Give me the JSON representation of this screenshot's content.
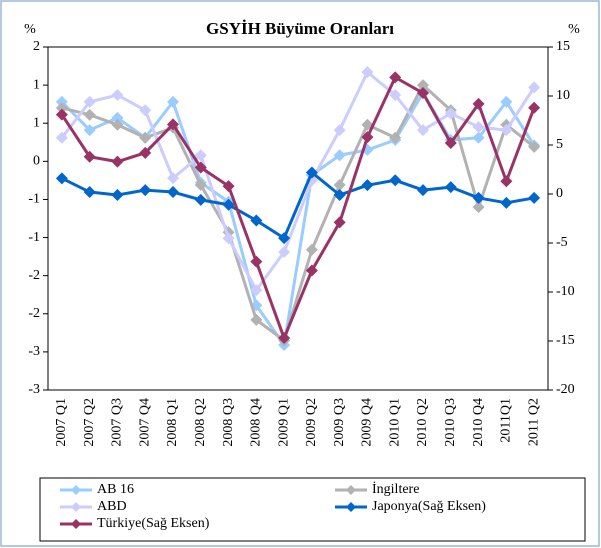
{
  "chart_data": {
    "type": "line",
    "title": "GSYİH Büyüme Oranları",
    "y_label": "%",
    "y2_label": "%",
    "categories": [
      "2007 Q1",
      "2007 Q2",
      "2007 Q3",
      "2007 Q4",
      "2008 Q1",
      "2008 Q2",
      "2008 Q3",
      "2008 Q4",
      "2009 Q1",
      "2009 Q2",
      "2009 Q3",
      "2009 Q4",
      "2010 Q1",
      "2010 Q2",
      "2010 Q3",
      "2010 Q4",
      "2011Q1",
      "2011 Q2"
    ],
    "ylim": [
      -3,
      1.5
    ],
    "yticks": [
      {
        "value": 1.5,
        "label": "2"
      },
      {
        "value": 1,
        "label": "1"
      },
      {
        "value": 0.5,
        "label": "1"
      },
      0,
      {
        "value": -0.5,
        "label": "-1"
      },
      {
        "value": -1,
        "label": "-1"
      },
      {
        "value": -1.5,
        "label": "-2"
      },
      {
        "value": -2,
        "label": "-2"
      },
      {
        "value": -2.5,
        "label": "-3"
      },
      {
        "value": -3,
        "label": "-3"
      }
    ],
    "y2lim": [
      -20,
      15
    ],
    "y2ticks": [
      15,
      10,
      5,
      0,
      -5,
      -10,
      -15,
      -20
    ],
    "series": [
      {
        "name": "AB 16",
        "color": "#99ccff",
        "values": [
          0.78,
          0.41,
          0.57,
          0.31,
          0.78,
          -0.28,
          -0.53,
          -1.89,
          -2.41,
          -0.18,
          0.08,
          0.15,
          0.28,
          0.9,
          0.28,
          0.31,
          0.78,
          0.21
        ]
      },
      {
        "name": "İngiltere",
        "color": "#b2b2b2",
        "values": [
          0.7,
          0.61,
          0.48,
          0.31,
          0.44,
          -0.31,
          -0.93,
          -2.08,
          -2.35,
          -1.16,
          -0.31,
          0.48,
          0.31,
          1.0,
          0.67,
          -0.6,
          0.48,
          0.19
        ]
      },
      {
        "name": "ABD",
        "color": "#ccccff",
        "values": [
          0.31,
          0.78,
          0.87,
          0.67,
          -0.22,
          0.08,
          -1.01,
          -1.69,
          -1.19,
          -0.25,
          0.41,
          1.17,
          0.87,
          0.41,
          0.63,
          0.45,
          0.41,
          0.97
        ]
      },
      {
        "name": "Japonya(Sağ Eksen)",
        "color": "#0066cc",
        "axis": "y2",
        "values": [
          1.6,
          0.2,
          -0.1,
          0.4,
          0.2,
          -0.6,
          -1.1,
          -2.7,
          -4.5,
          2.2,
          -0.1,
          0.9,
          1.4,
          0.4,
          0.7,
          -0.4,
          -0.9,
          -0.4
        ]
      },
      {
        "name": "Türkiye(Sağ Eksen)",
        "color": "#993366",
        "axis": "y2",
        "values": [
          8.1,
          3.8,
          3.3,
          4.2,
          7.1,
          2.7,
          0.8,
          -6.9,
          -14.7,
          -7.8,
          -2.9,
          5.8,
          11.9,
          10.3,
          5.2,
          9.2,
          1.3,
          8.8
        ]
      }
    ]
  }
}
